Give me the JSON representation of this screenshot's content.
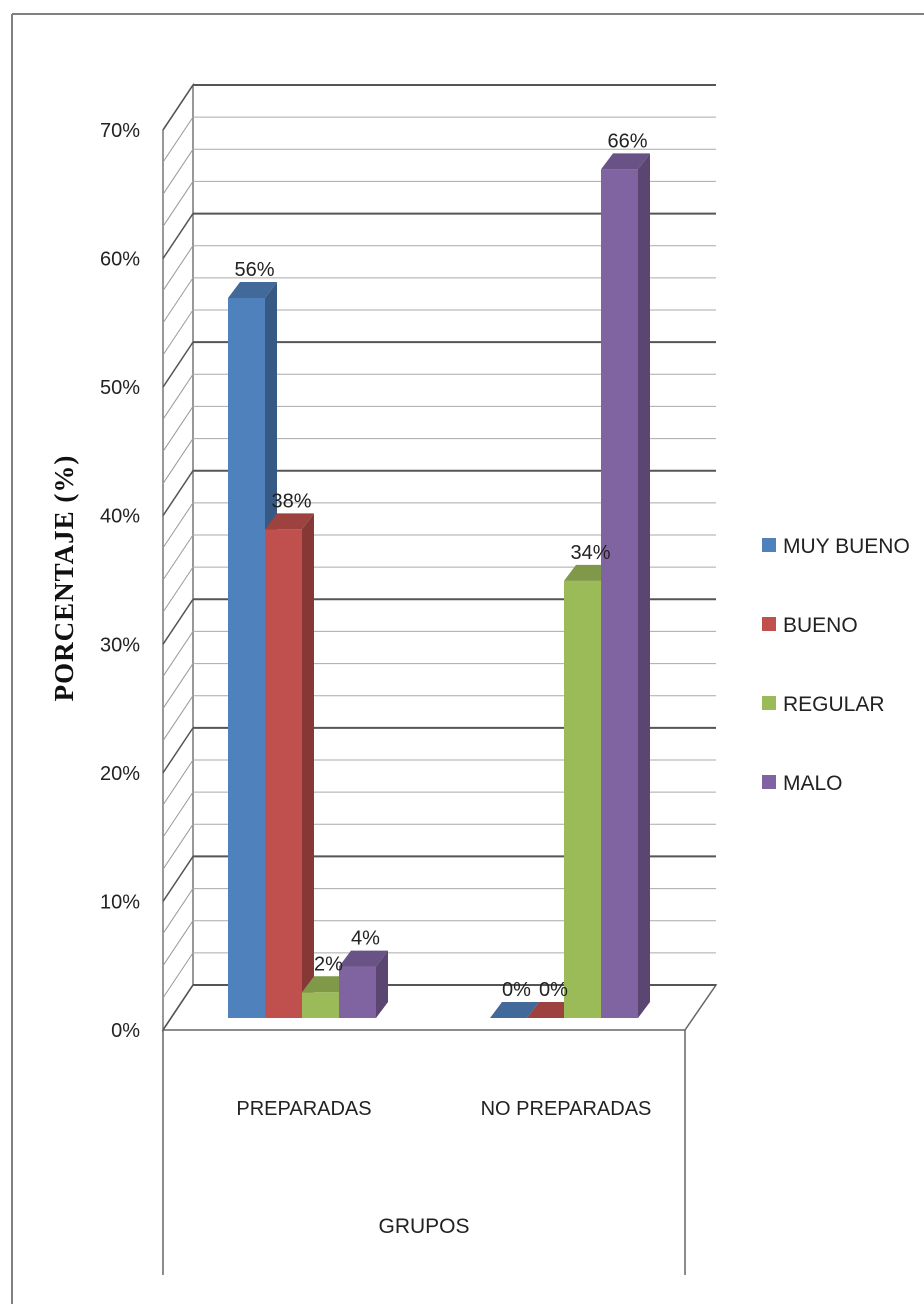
{
  "chart_data": {
    "type": "bar",
    "style": "3d-clustered-column",
    "categories": [
      "PREPARADAS",
      "NO PREPARADAS"
    ],
    "series": [
      {
        "name": "MUY BUENO",
        "values": [
          56,
          0
        ],
        "labels": [
          "56%",
          "0%"
        ],
        "color": "#4f81bd"
      },
      {
        "name": "BUENO",
        "values": [
          38,
          0
        ],
        "labels": [
          "38%",
          "0%"
        ],
        "color": "#c0504d"
      },
      {
        "name": "REGULAR",
        "values": [
          2,
          34
        ],
        "labels": [
          "2%",
          "34%"
        ],
        "color": "#9bbb59"
      },
      {
        "name": "MALO",
        "values": [
          4,
          66
        ],
        "labels": [
          "4%",
          "66%"
        ],
        "color": "#8064a2"
      }
    ],
    "ylim": [
      0,
      70
    ],
    "yticks": [
      "0%",
      "10%",
      "20%",
      "30%",
      "40%",
      "50%",
      "60%",
      "70%"
    ],
    "ylabel": "PORCENTAJE (%)",
    "xlabel": "GRUPOS",
    "legend_position": "right",
    "grid": true
  }
}
